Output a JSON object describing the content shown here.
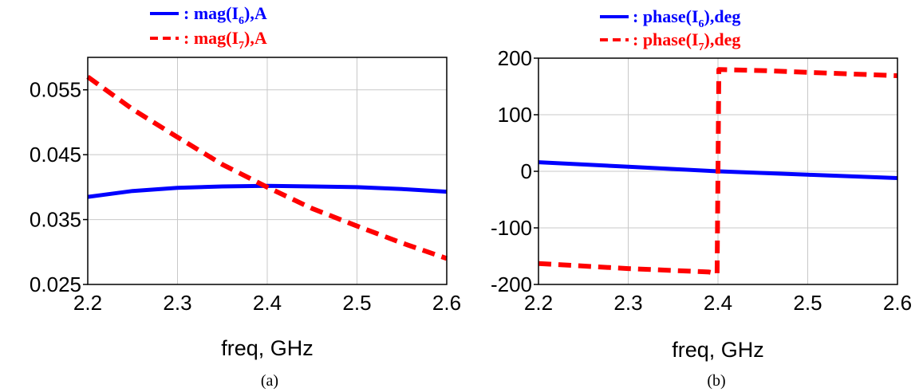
{
  "chart_data": [
    {
      "type": "line",
      "panel": "a",
      "caption": "(a)",
      "xlabel": "freq, GHz",
      "ylabel": "",
      "xlim": [
        2.2,
        2.6
      ],
      "ylim": [
        0.025,
        0.06
      ],
      "xticks": [
        "2.2",
        "2.3",
        "2.4",
        "2.5",
        "2.6"
      ],
      "yticks": [
        "0.025",
        "0.035",
        "0.045",
        "0.055"
      ],
      "xtick_values": [
        2.2,
        2.3,
        2.4,
        2.5,
        2.6
      ],
      "ytick_values": [
        0.025,
        0.035,
        0.045,
        0.055
      ],
      "grid": true,
      "legend_position": "top",
      "series": [
        {
          "name": ": mag(I6),A",
          "label_base": ": mag(I",
          "label_sub": "6",
          "label_tail": "),A",
          "color": "#0000ff",
          "style": "solid",
          "x": [
            2.2,
            2.25,
            2.3,
            2.35,
            2.4,
            2.45,
            2.5,
            2.55,
            2.6
          ],
          "y": [
            0.0385,
            0.0394,
            0.0399,
            0.0401,
            0.0402,
            0.0401,
            0.04,
            0.0397,
            0.0393
          ]
        },
        {
          "name": ": mag(I7),A",
          "label_base": ": mag(I",
          "label_sub": "7",
          "label_tail": "),A",
          "color": "#ff0000",
          "style": "dashed",
          "x": [
            2.2,
            2.25,
            2.3,
            2.35,
            2.4,
            2.45,
            2.5,
            2.55,
            2.6
          ],
          "y": [
            0.057,
            0.052,
            0.0477,
            0.0435,
            0.04,
            0.0367,
            0.034,
            0.0314,
            0.029
          ]
        }
      ]
    },
    {
      "type": "line",
      "panel": "b",
      "caption": "(b)",
      "xlabel": "freq, GHz",
      "ylabel": "",
      "xlim": [
        2.2,
        2.6
      ],
      "ylim": [
        -200,
        200
      ],
      "xticks": [
        "2.2",
        "2.3",
        "2.4",
        "2.5",
        "2.6"
      ],
      "yticks": [
        "-200",
        "-100",
        "0",
        "100",
        "200"
      ],
      "xtick_values": [
        2.2,
        2.3,
        2.4,
        2.5,
        2.6
      ],
      "ytick_values": [
        -200,
        -100,
        0,
        100,
        200
      ],
      "grid": true,
      "legend_position": "top",
      "series": [
        {
          "name": ": phase(I6),deg",
          "label_base": ": phase(I",
          "label_sub": "6",
          "label_tail": "),deg",
          "color": "#0000ff",
          "style": "solid",
          "x": [
            2.2,
            2.3,
            2.4,
            2.5,
            2.6
          ],
          "y": [
            16,
            8,
            0,
            -6,
            -12
          ]
        },
        {
          "name": ": phase(I7),deg",
          "label_base": ": phase(I",
          "label_sub": "7",
          "label_tail": "),deg",
          "color": "#ff0000",
          "style": "dashed",
          "x": [
            2.2,
            2.3,
            2.39,
            2.399,
            2.401,
            2.45,
            2.5,
            2.6
          ],
          "y": [
            -163,
            -172,
            -178,
            -181,
            180,
            178,
            175,
            169
          ]
        }
      ]
    }
  ]
}
